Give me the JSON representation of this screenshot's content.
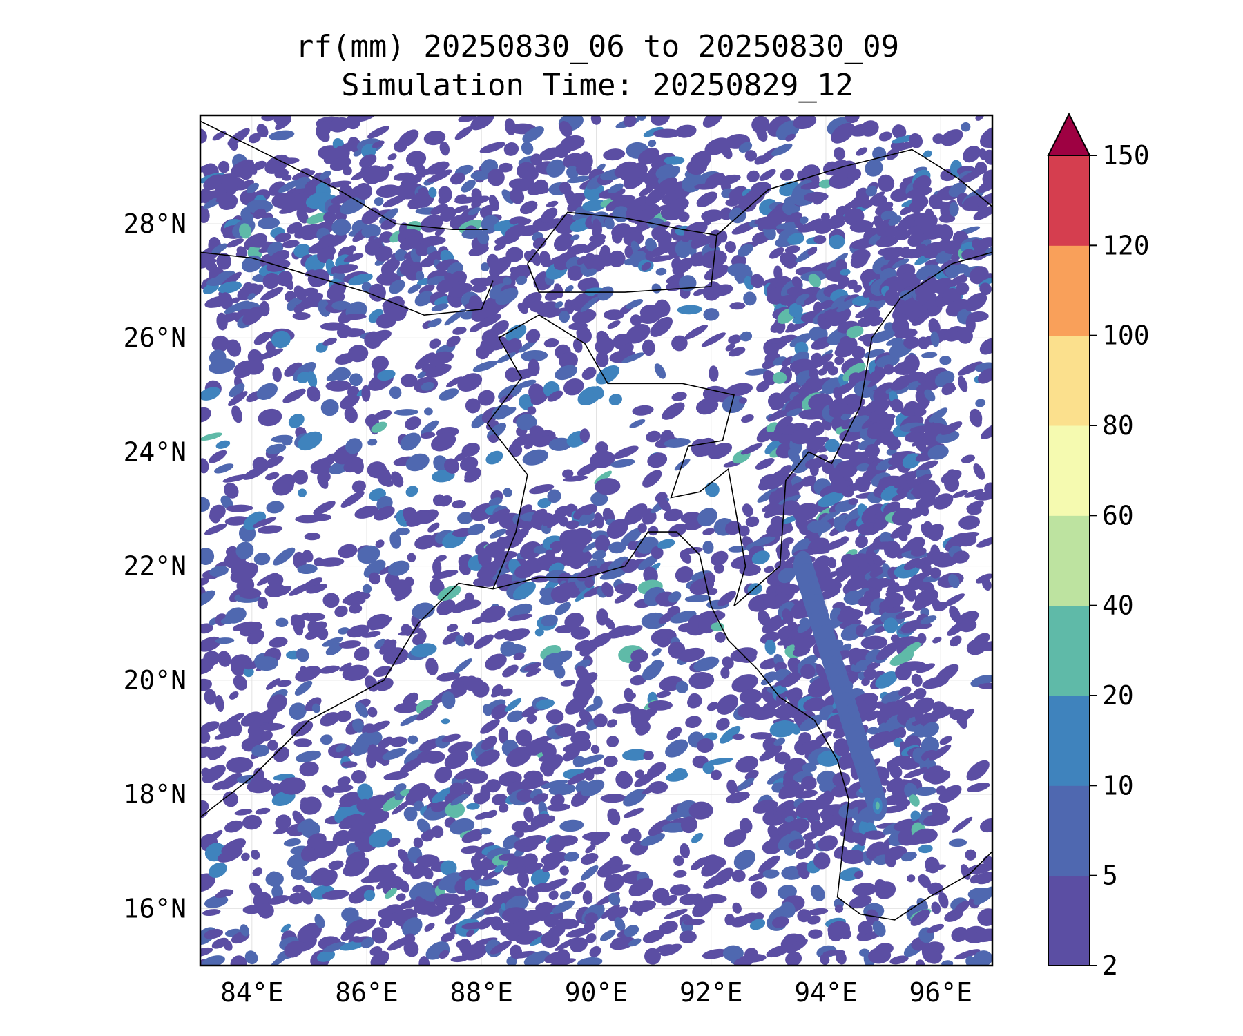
{
  "title": {
    "line1": "rf(mm) 20250830_06 to 20250830_09",
    "line2": "Simulation Time: 20250829_12"
  },
  "map": {
    "lon_range": [
      83.1,
      96.9
    ],
    "lat_range": [
      15.0,
      29.9
    ],
    "lon_ticks": [
      84,
      86,
      88,
      90,
      92,
      94,
      96
    ],
    "lon_tick_labels": [
      "84°E",
      "86°E",
      "88°E",
      "90°E",
      "92°E",
      "94°E",
      "96°E"
    ],
    "lat_ticks": [
      16,
      18,
      20,
      22,
      24,
      26,
      28
    ],
    "lat_tick_labels": [
      "16°N",
      "18°N",
      "20°N",
      "22°N",
      "24°N",
      "26°N",
      "28°N"
    ],
    "gridlines": true
  },
  "colorbar": {
    "levels": [
      2,
      5,
      10,
      20,
      40,
      60,
      80,
      100,
      120,
      150
    ],
    "tick_labels": [
      "2",
      "5",
      "10",
      "20",
      "40",
      "60",
      "80",
      "100",
      "120",
      "150"
    ],
    "colors": [
      "#5b4ea3",
      "#4f68b0",
      "#3f83bd",
      "#5fbaa8",
      "#bde3a0",
      "#f5fab0",
      "#fbe08d",
      "#f9a05a",
      "#d53e4f"
    ],
    "extend_color": "#9e0142",
    "extend": "max"
  }
}
